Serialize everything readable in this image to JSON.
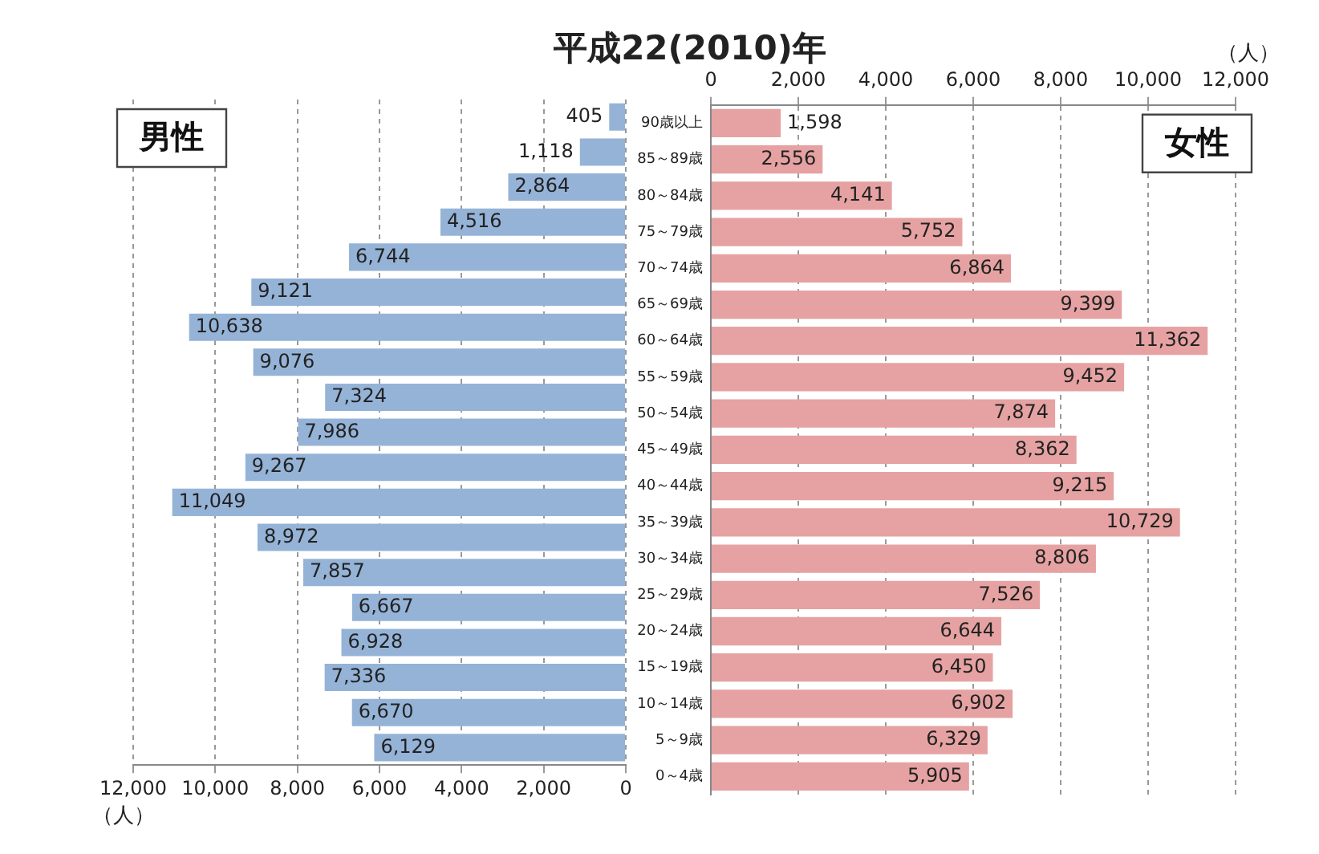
{
  "chart_data": [
    {
      "type": "bar",
      "orientation": "horizontal",
      "title": "平成22(2010)年",
      "xlabel": "（人）",
      "tick_labels": "x",
      "grid": "x",
      "annotations": [
        "男性"
      ],
      "categories": [
        null,
        null,
        null,
        null,
        null,
        null,
        null,
        null,
        null,
        null,
        null,
        null,
        null,
        null,
        null,
        null,
        null,
        null,
        null
      ],
      "xlim": [
        12000,
        0
      ],
      "xticks": [
        {
          "value": 12000,
          "label": "12,000"
        },
        {
          "value": 10000,
          "label": "10,000"
        },
        {
          "value": 8000,
          "label": "8,000"
        },
        {
          "value": 6000,
          "label": "6,000"
        },
        {
          "value": 4000,
          "label": "4,000"
        },
        {
          "value": 2000,
          "label": "2,000"
        },
        0
      ],
      "series": [
        {
          "color": "#95b3d7",
          "values": [
            405,
            1118,
            2864,
            4516,
            6744,
            9121,
            10638,
            9076,
            7324,
            7986,
            9267,
            11049,
            8972,
            7857,
            6667,
            6928,
            7336,
            6670,
            6129
          ],
          "value_labels": [
            "405",
            "1,118",
            "2,864",
            "4,516",
            "6,744",
            "9,121",
            "10,638",
            "9,076",
            "7,324",
            "7,986",
            "9,267",
            "11,049",
            "8,972",
            "7,857",
            "6,667",
            "6,928",
            "7,336",
            "6,670",
            "6,129"
          ]
        }
      ]
    },
    {
      "type": "bar",
      "orientation": "horizontal",
      "x2label": "（人）",
      "grid": "x",
      "annotations": [
        "女性"
      ],
      "categories": [
        "90歳以上",
        "85～89歳",
        "80～84歳",
        "75～79歳",
        "70～74歳",
        "65～69歳",
        "60～64歳",
        "55～59歳",
        "50～54歳",
        "45～49歳",
        "40～44歳",
        "35～39歳",
        "30～34歳",
        "25～29歳",
        "20～24歳",
        "15～19歳",
        "10～14歳",
        "5～9歳",
        "0～4歳"
      ],
      "x2lim": [
        0,
        12000
      ],
      "x2ticks": [
        0,
        {
          "value": 2000,
          "label": "2,000"
        },
        {
          "value": 4000,
          "label": "4,000"
        },
        {
          "value": 6000,
          "label": "6,000"
        },
        {
          "value": 8000,
          "label": "8,000"
        },
        {
          "value": 10000,
          "label": "10,000"
        },
        {
          "value": 12000,
          "label": "12,000"
        }
      ],
      "series": [
        {
          "color": "#e6a2a2",
          "values": [
            1598,
            2556,
            4141,
            5752,
            6864,
            9399,
            11362,
            9452,
            7874,
            8362,
            9215,
            10729,
            8806,
            7526,
            6644,
            6450,
            6902,
            6329,
            5905
          ],
          "value_labels": [
            "1,598",
            "2,556",
            "4,141",
            "5,752",
            "6,864",
            "9,399",
            "11,362",
            "9,452",
            "7,874",
            "8,362",
            "9,215",
            "10,729",
            "8,806",
            "7,526",
            "6,644",
            "6,450",
            "6,902",
            "6,329",
            "5,905"
          ]
        }
      ]
    }
  ]
}
